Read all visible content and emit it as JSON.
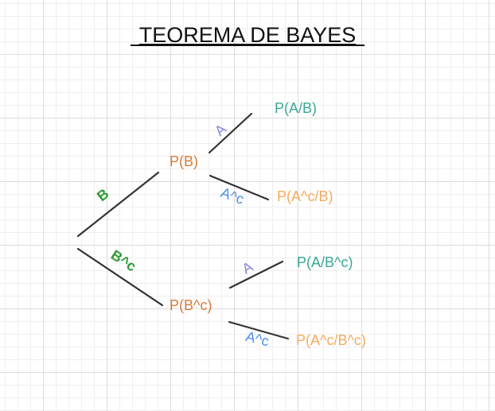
{
  "title": "TEOREMA DE BAYES",
  "colors": {
    "first_level_node": "#d87a3a",
    "posterior_event": "#3aa893",
    "posterior_complement": "#f5ab5c",
    "event_b_label": "#2d9b35",
    "event_a_label": "#8a86e0",
    "complement_a_label": "#4b8fe8",
    "edges": "#333333"
  },
  "tree": {
    "level1": {
      "upper_node": "P(B)",
      "lower_node": "P(B^c)",
      "upper_edge_label": "B",
      "lower_edge_label": "B^c"
    },
    "level2_upper": {
      "top_edge_label": "A",
      "top_leaf": "P(A/B)",
      "bottom_edge_label": "A^c",
      "bottom_leaf": "P(A^c/B)"
    },
    "level2_lower": {
      "top_edge_label": "A",
      "top_leaf": "P(A/B^c)",
      "bottom_edge_label": "A^c",
      "bottom_leaf": "P(A^c/B^c)"
    }
  }
}
